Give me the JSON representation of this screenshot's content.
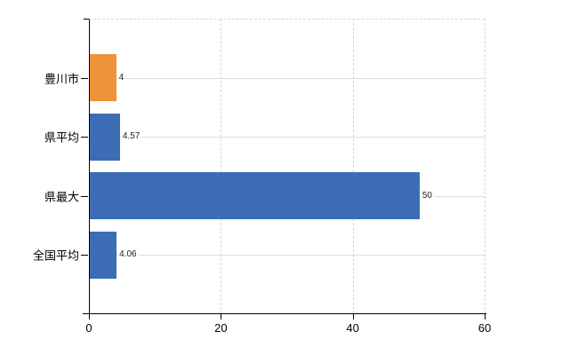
{
  "chart_data": {
    "type": "bar",
    "orientation": "horizontal",
    "title": "",
    "xlabel": "",
    "ylabel": "",
    "categories": [
      "豊川市",
      "県平均",
      "県最大",
      "全国平均"
    ],
    "values": [
      4,
      4.57,
      50,
      4.06
    ],
    "value_labels": [
      "4",
      "4.57",
      "50",
      "4.06"
    ],
    "bar_colors": [
      "#ee9338",
      "#3c6cb4",
      "#3c6cb4",
      "#3c6cb4"
    ],
    "xlim": [
      0,
      60
    ],
    "x_ticks": [
      0,
      20,
      40,
      60
    ],
    "x_tick_labels": [
      "0",
      "20",
      "40",
      "60"
    ],
    "grid": {
      "vertical": "dashed",
      "horizontal_category_lines": "solid"
    },
    "legend": "none"
  },
  "colors": {
    "bar_orange": "#ee9338",
    "bar_blue": "#3c6cb4",
    "grid_dashed": "#d6d6d6",
    "grid_solid": "#dcdcdc",
    "axis": "#000000",
    "value_text": "#222222",
    "background": "#ffffff"
  }
}
